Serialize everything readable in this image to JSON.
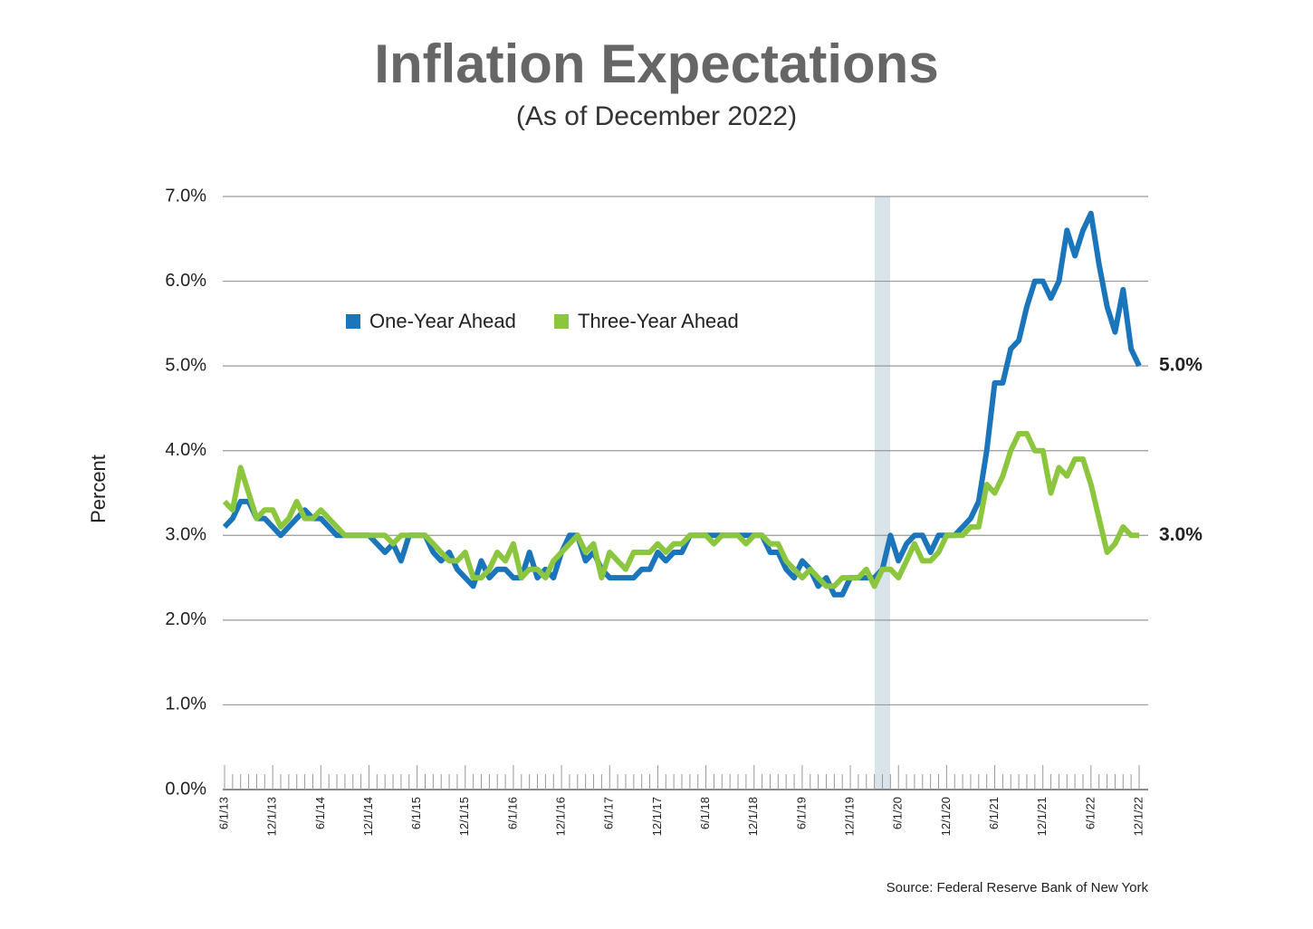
{
  "chart_data": {
    "type": "line",
    "title": "Inflation Expectations",
    "subtitle": "(As of December 2022)",
    "y_label": "Percent",
    "source": "Source: Federal Reserve Bank of New York",
    "categories": [
      "6/1/13",
      null,
      null,
      null,
      null,
      null,
      "12/1/13",
      null,
      null,
      null,
      null,
      null,
      "6/1/14",
      null,
      null,
      null,
      null,
      null,
      "12/1/14",
      null,
      null,
      null,
      null,
      null,
      "6/1/15",
      null,
      null,
      null,
      null,
      null,
      "12/1/15",
      null,
      null,
      null,
      null,
      null,
      "6/1/16",
      null,
      null,
      null,
      null,
      null,
      "12/1/16",
      null,
      null,
      null,
      null,
      null,
      "6/1/17",
      null,
      null,
      null,
      null,
      null,
      "12/1/17",
      null,
      null,
      null,
      null,
      null,
      "6/1/18",
      null,
      null,
      null,
      null,
      null,
      "12/1/18",
      null,
      null,
      null,
      null,
      null,
      "6/1/19",
      null,
      null,
      null,
      null,
      null,
      "12/1/19",
      null,
      null,
      null,
      null,
      null,
      "6/1/20",
      null,
      null,
      null,
      null,
      null,
      "12/1/20",
      null,
      null,
      null,
      null,
      null,
      "6/1/21",
      null,
      null,
      null,
      null,
      null,
      "12/1/21",
      null,
      null,
      null,
      null,
      null,
      "6/1/22",
      null,
      null,
      null,
      null,
      null,
      "12/1/22"
    ],
    "series": [
      {
        "name": "One-Year Ahead",
        "color": "#1b75bb",
        "values": [
          3.1,
          3.2,
          3.4,
          3.4,
          3.2,
          3.2,
          3.1,
          3.0,
          3.1,
          3.2,
          3.3,
          3.2,
          3.2,
          3.1,
          3.0,
          3.0,
          3.0,
          3.0,
          3.0,
          2.9,
          2.8,
          2.9,
          2.7,
          3.0,
          3.0,
          3.0,
          2.8,
          2.7,
          2.8,
          2.6,
          2.5,
          2.4,
          2.7,
          2.5,
          2.6,
          2.6,
          2.5,
          2.5,
          2.8,
          2.5,
          2.6,
          2.5,
          2.8,
          3.0,
          3.0,
          2.7,
          2.8,
          2.6,
          2.5,
          2.5,
          2.5,
          2.5,
          2.6,
          2.6,
          2.8,
          2.7,
          2.8,
          2.8,
          3.0,
          3.0,
          3.0,
          3.0,
          3.0,
          3.0,
          3.0,
          3.0,
          3.0,
          3.0,
          2.8,
          2.8,
          2.6,
          2.5,
          2.7,
          2.6,
          2.4,
          2.5,
          2.3,
          2.3,
          2.5,
          2.5,
          2.5,
          2.5,
          2.6,
          3.0,
          2.7,
          2.9,
          3.0,
          3.0,
          2.8,
          3.0,
          3.0,
          3.0,
          3.1,
          3.2,
          3.4,
          4.0,
          4.8,
          4.8,
          5.2,
          5.3,
          5.7,
          6.0,
          6.0,
          5.8,
          6.0,
          6.6,
          6.3,
          6.6,
          6.8,
          6.2,
          5.7,
          5.4,
          5.9,
          5.2,
          5.0
        ],
        "value_labels": [
          null,
          null,
          null,
          null,
          null,
          null,
          null,
          null,
          null,
          null,
          null,
          null,
          null,
          null,
          null,
          null,
          null,
          null,
          null,
          null,
          null,
          null,
          null,
          null,
          null,
          null,
          null,
          null,
          null,
          null,
          null,
          null,
          null,
          null,
          null,
          null,
          null,
          null,
          null,
          null,
          null,
          null,
          null,
          null,
          null,
          null,
          null,
          null,
          null,
          null,
          null,
          null,
          null,
          null,
          null,
          null,
          null,
          null,
          null,
          null,
          null,
          null,
          null,
          null,
          null,
          null,
          null,
          null,
          null,
          null,
          null,
          null,
          null,
          null,
          null,
          null,
          null,
          null,
          null,
          null,
          null,
          null,
          null,
          null,
          null,
          null,
          null,
          null,
          null,
          null,
          null,
          null,
          null,
          null,
          null,
          null,
          null,
          null,
          null,
          null,
          null,
          null,
          null,
          null,
          null,
          null,
          null,
          null,
          null,
          null,
          null,
          null,
          null,
          null,
          "5.0%"
        ]
      },
      {
        "name": "Three-Year Ahead",
        "color": "#8cc63e",
        "values": [
          3.4,
          3.3,
          3.8,
          3.5,
          3.2,
          3.3,
          3.3,
          3.1,
          3.2,
          3.4,
          3.2,
          3.2,
          3.3,
          3.2,
          3.1,
          3.0,
          3.0,
          3.0,
          3.0,
          3.0,
          3.0,
          2.9,
          3.0,
          3.0,
          3.0,
          3.0,
          2.9,
          2.8,
          2.7,
          2.7,
          2.8,
          2.5,
          2.5,
          2.6,
          2.8,
          2.7,
          2.9,
          2.5,
          2.6,
          2.6,
          2.5,
          2.7,
          2.8,
          2.9,
          3.0,
          2.8,
          2.9,
          2.5,
          2.8,
          2.7,
          2.6,
          2.8,
          2.8,
          2.8,
          2.9,
          2.8,
          2.9,
          2.9,
          3.0,
          3.0,
          3.0,
          2.9,
          3.0,
          3.0,
          3.0,
          2.9,
          3.0,
          3.0,
          2.9,
          2.9,
          2.7,
          2.6,
          2.5,
          2.6,
          2.5,
          2.4,
          2.4,
          2.5,
          2.5,
          2.5,
          2.6,
          2.4,
          2.6,
          2.6,
          2.5,
          2.7,
          2.9,
          2.7,
          2.7,
          2.8,
          3.0,
          3.0,
          3.0,
          3.1,
          3.1,
          3.6,
          3.5,
          3.7,
          4.0,
          4.2,
          4.2,
          4.0,
          4.0,
          3.5,
          3.8,
          3.7,
          3.9,
          3.9,
          3.6,
          3.2,
          2.8,
          2.9,
          3.1,
          3.0,
          3.0
        ],
        "value_labels": [
          null,
          null,
          null,
          null,
          null,
          null,
          null,
          null,
          null,
          null,
          null,
          null,
          null,
          null,
          null,
          null,
          null,
          null,
          null,
          null,
          null,
          null,
          null,
          null,
          null,
          null,
          null,
          null,
          null,
          null,
          null,
          null,
          null,
          null,
          null,
          null,
          null,
          null,
          null,
          null,
          null,
          null,
          null,
          null,
          null,
          null,
          null,
          null,
          null,
          null,
          null,
          null,
          null,
          null,
          null,
          null,
          null,
          null,
          null,
          null,
          null,
          null,
          null,
          null,
          null,
          null,
          null,
          null,
          null,
          null,
          null,
          null,
          null,
          null,
          null,
          null,
          null,
          null,
          null,
          null,
          null,
          null,
          null,
          null,
          null,
          null,
          null,
          null,
          null,
          null,
          null,
          null,
          null,
          null,
          null,
          null,
          null,
          null,
          null,
          null,
          null,
          null,
          null,
          null,
          null,
          null,
          null,
          null,
          null,
          null,
          null,
          null,
          null,
          null,
          "3.0%"
        ]
      }
    ],
    "ylim": [
      0,
      7
    ],
    "yticks": [
      {
        "value": 0,
        "label": "0.0%"
      },
      {
        "value": 1,
        "label": "1.0%"
      },
      {
        "value": 2,
        "label": "2.0%"
      },
      {
        "value": 3,
        "label": "3.0%"
      },
      {
        "value": 4,
        "label": "4.0%"
      },
      {
        "value": 5,
        "label": "5.0%"
      },
      {
        "value": 6,
        "label": "6.0%"
      },
      {
        "value": 7,
        "label": "7.0%"
      }
    ],
    "grid": true
  }
}
